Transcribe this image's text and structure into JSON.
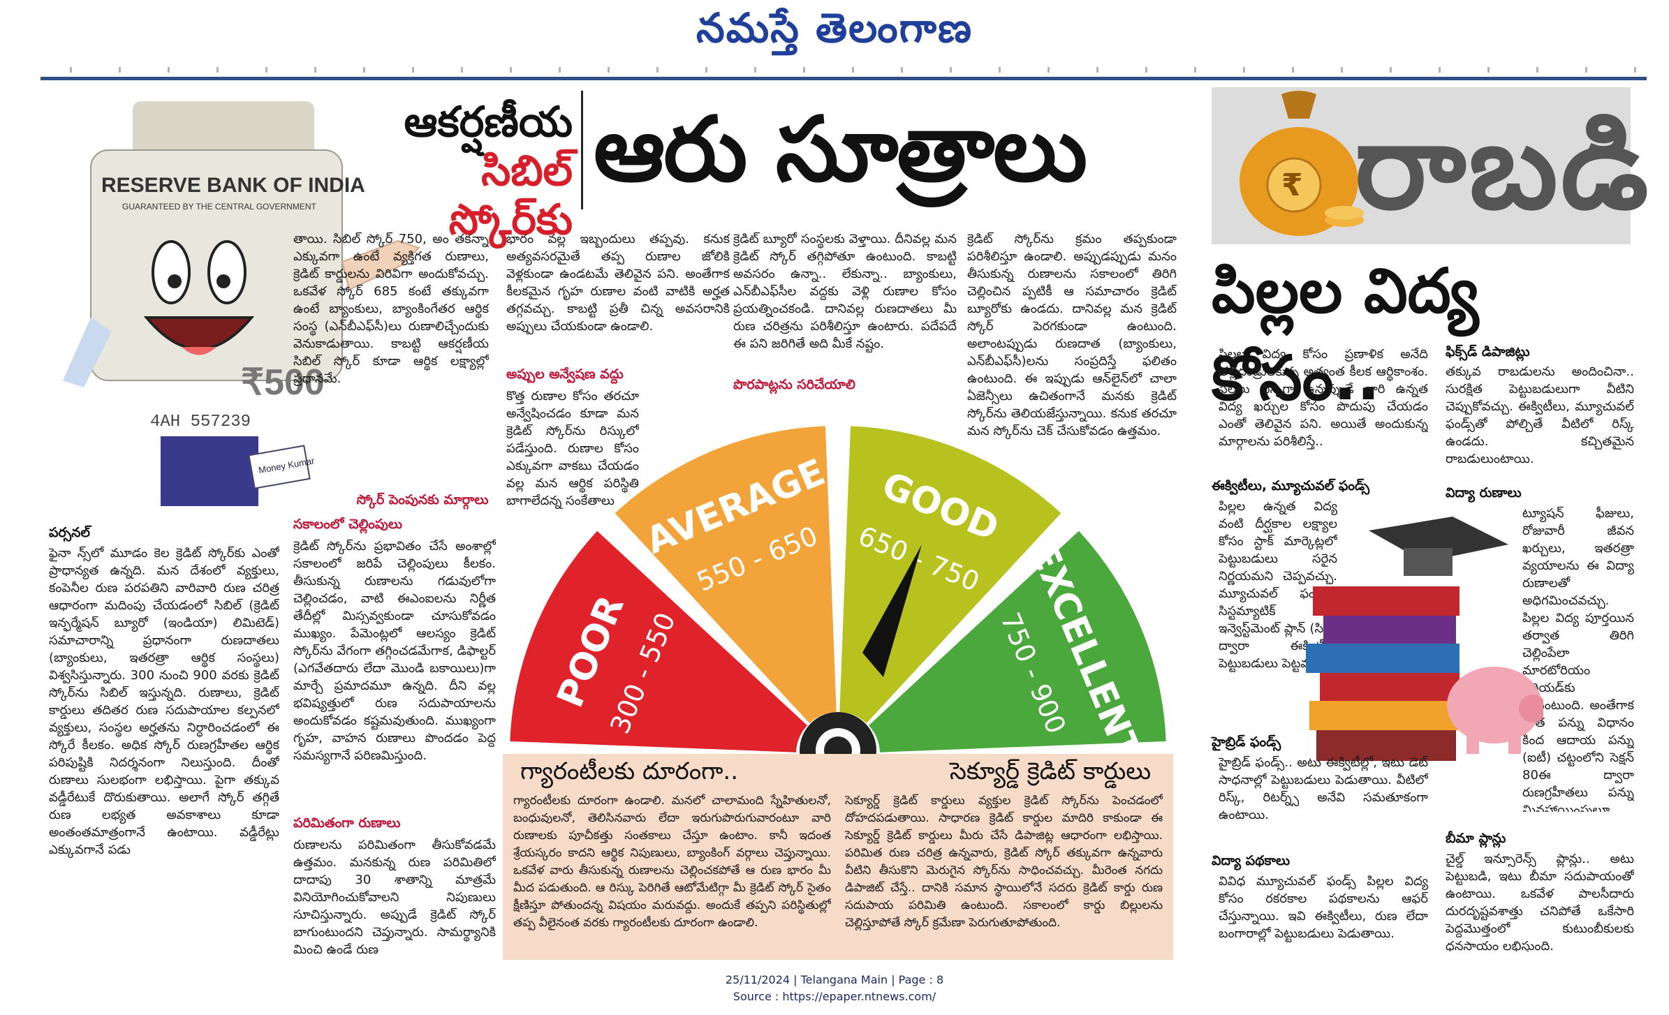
{
  "masthead": {
    "title": "నమస్తే తెలంగాణ"
  },
  "left_story": {
    "headline_line1": "ఆకర్షణీయ",
    "headline_line2": "సిబిల్ స్కోర్‌కు",
    "headline_main": "ఆరు సూత్రాలు",
    "note_label": "RESERVE BANK OF INDIA",
    "note_sub": "GUARANTEED BY THE CENTRAL GOVERNMENT",
    "note_value": "₹500",
    "note_serial": "4AH 557239",
    "badge": "Money Kumar",
    "intro_col1": "తాయి. సిబిల్ స్కోర్ 750, అం తకన్నా ఎక్కువగా ఉంటే వ్యక్తిగత రుణాలు, క్రెడిట్ కార్డులను విరివిగా అందుకోవచ్చు. ఒకవేళ స్కోర్ 685 కంటే తక్కువగా ఉంటే బ్యాంకులు, బ్యాంకింగేతర ఆర్థిక సంస్థ (ఎన్‌బీఎఫ్‌సీ)లు రుణాలిచ్చేందుకు వెనుకాడుతాయి. కాబట్టి ఆకర్షణీయ సిబిల్ స్కోర్ కూడా ఆర్థిక లక్ష్యాల్లో ప్రధానమే.",
    "sub_score": "స్కోర్ పెంపునకు మార్గాలు",
    "sub_timely": "సకాలంలో చెల్లింపులు",
    "timely_text": "క్రెడిట్ స్కోర్‌ను ప్రభావితం చేసే అంశాల్లో సకాలంలో జరిపే చెల్లింపులు కీలకం. తీసుకున్న రుణాలను గడువులోగా చెల్లించడం, వాటి ఈఎంఐలను నిర్ణీత తేదీల్లో మిస్సవ్వకుండా చూసుకోవడం ముఖ్యం. పేమెంట్లలో ఆలస్యం క్రెడిట్ స్కోర్‌ను వేగంగా తగ్గించడమేగాక, డిఫాల్టర్ (ఎగవేతదారు లేదా మొండి బకాయిలు)గా మార్చే ప్రమాదమూ ఉన్నది. దీని వల్ల భవిష్యత్తులో రుణ సదుపాయాలను అందుకోవడం కష్టమవుతుంది. ముఖ్యంగా గృహ, వాహన రుణాలు పొందడం పెద్ద సమస్యగానే పరిణమిస్తుంది.",
    "personal_head": "పర్సనల్",
    "personal_text": "ఫైనా న్స్‌లో మూడం కెల క్రెడిట్ స్కోర్‌కు ఎంతో ప్రాధాన్యత ఉన్నది. మన దేశంలో వ్యక్తులు, కంపెనీల రుణ పరపతిని వారివారి రుణ చరిత్ర ఆధారంగా మదింపు చేయడంలో సిబిల్ (క్రెడిట్ ఇన్ఫర్మేషన్ బ్యూరో (ఇండియా) లిమిటెడ్) సమాచారాన్ని ప్రధానంగా రుణదాతలు (బ్యాంకులు, ఇతరత్రా ఆర్థిక సంస్థలు) విశ్వసిస్తున్నారు. 300 నుంచి 900 వరకు క్రెడిట్ స్కోర్‌ను సిబిల్ ఇస్తున్నది. రుణాలు, క్రెడిట్ కార్డులు తదితర రుణ సదుపాయాల కల్పనలో వ్యక్తులు, సంస్థల అర్హతను నిర్ధారించడంలో ఈ స్కోరే కీలకం. అధిక స్కోర్ రుణగ్రహీతల ఆర్థిక పరిపుష్టికి నిదర్శనంగా నిలుస్తుంది. దీంతో రుణాలు సులభంగా లభిస్తాయి. పైగా తక్కువ వడ్డీరేటుకే దొరుకుతాయి. అలాగే స్కోర్ తగ్గితే రుణ లభ్యత అవకాశాలు కూడా అంతంతమాత్రంగానే ఉంటాయి. వడ్డీరేట్లు ఎక్కువగానే పడు",
    "sub_limit": "పరిమితంగా రుణాలు",
    "limit_text": "రుణాలను పరిమితంగా తీసుకోవడమే ఉత్తమం. మనకున్న రుణ పరిమితిలో దాదాపు 30 శాతాన్ని మాత్రమే వినియోగించుకోవాలని నిపుణులు సూచిస్తున్నారు. అప్పుడే క్రెడిట్ స్కోర్ బాగుంటుందని చెప్తున్నారు. సామర్థ్యానికి మించి ఉండే రుణ",
    "col3_top": "భారం వల్ల ఇబ్బందులు తప్పవు. కనుక అత్యవసరమైతే తప్ప రుణాల జోలికి వెళ్లకుండా ఉండటమే తెలివైన పని. అంతేగాక కీలకమైన గృహ రుణాల వంటి వాటికి అర్హత తగ్గవచ్చు. కాబట్టి ప్రతీ చిన్న అవసరానికి అప్పులు చేయకుండా ఉండాలి.",
    "sub_search": "అప్పుల అన్వేషణ వద్దు",
    "search_text": "కొత్త రుణాల కోసం తరచూ అన్వేషించడం కూడా మన క్రెడిట్ స్కోర్‌ను రిస్కులో పడేస్తుంది. రుణాల కోసం ఎక్కువగా వాకబు చేయడం వల్ల మన ఆర్థిక పరిస్థితి బాగాలేదన్న సంకేతాలు",
    "col4_top": "క్రెడిట్ బ్యూరో సంస్థలకు వెళ్తాయి. దీనివల్ల మన క్రెడిట్ స్కోర్ తగ్గిపోతూ ఉంటుంది. కాబట్టి అవసరం ఉన్నా.. లేకున్నా.. బ్యాంకులు, ఎన్‌బీఎఫ్‌సీల వద్దకు వెళ్లి రుణాల కోసం ప్రయత్నించకండి. దానివల్ల రుణదాతలు మీ రుణ చరిత్రను పరిశీలిస్తూ ఉంటారు. పదేపదే ఈ పని జరిగితే అది మీకే నష్టం.",
    "sub_errors": "పొరపాట్లను సరిచేయాలి",
    "col5_top": "క్రెడిట్ స్కోర్‌ను క్రమం తప్పకుండా పరిశీలిస్తూ ఉండాలి. అప్పుడప్పుడు మనం తీసుకున్న రుణాలను సకాలంలో తిరిగి చెల్లించిన ప్పటికీ ఆ సమాచారం క్రెడిట్ బ్యూరోకు ఉండదు. దానివల్ల మన క్రెడిట్ స్కోర్ పెరగకుండా ఉంటుంది. అలాంటప్పుడు రుణదాత (బ్యాంకులు, ఎన్‌బీఎఫ్‌సీ)లను సంప్రదిస్తే ఫలితం ఉంటుంది. ఈ ఇప్పుడు ఆన్‌లైన్‌లో చాలా ఏజెన్సీలు ఉచితంగానే మనకు క్రెడిట్ స్కోర్‌ను తెలియజేస్తున్నాయి. కనుక తరచూ మన స్కోర్‌ను చెక్ చేసుకోవడం ఉత్తమం."
  },
  "gauge": {
    "segments": [
      {
        "label": "POOR",
        "range": "300 - 550",
        "color": "#e0232a"
      },
      {
        "label": "AVERAGE",
        "range": "550 - 650",
        "color": "#f2a33a"
      },
      {
        "label": "GOOD",
        "range": "650 - 750",
        "color": "#b7c21f"
      },
      {
        "label": "EXCELLENT",
        "range": "750 - 900",
        "color": "#4aa83c"
      }
    ],
    "strip_left": "గ్యారంటీలకు దూరంగా..",
    "strip_right": "సెక్యూర్డ్ క్రెడిట్ కార్డులు",
    "bottom_left_text": "గ్యారంటీలకు దూరంగా ఉండాలి. మనలో చాలామంది స్నేహితులనో, బంధువులనో, తెలిసినవారు లేదా ఇరుగుపొరుగువారంటూ వారి రుణాలకు పూచీకత్తు సంతకాలు చేస్తూ ఉంటాం. కానీ ఇదంత శ్రేయస్కరం కాదని ఆర్థిక నిపుణులు, బ్యాంకింగ్ వర్గాలు చెప్తున్నాయి. ఒకవేళ వారు తీసుకున్న రుణాలను చెల్లించకపోతే ఆ రుణ భారం మీ మీద పడుతుంది. ఆ రిస్కు పెరిగితే ఆటోమేటిగ్గా మీ క్రెడిట్ స్కోర్ సైతం క్షీణిస్తూ పోతుందన్న విషయం మరువద్దు. అందుకే తప్పని పరిస్థితుల్లో తప్ప వీలైనంత వరకు గ్యారంటీలకు దూరంగా ఉండాలి.",
    "bottom_right_text": "సెక్యూర్డ్ క్రెడిట్ కార్డులు వ్యక్తుల క్రెడిట్ స్కోర్‌ను పెంచడంలో దోహదపడుతాయి. సాధారణ క్రెడిట్ కార్డుల మాదిరి కాకుండా ఈ సెక్యూర్డ్ క్రెడిట్ కార్డులు మీరు చేసే డిపాజిట్ల ఆధారంగా లభిస్తాయి. పరిమిత రుణ చరిత్ర ఉన్నవారు, క్రెడిట్ స్కోర్ తక్కువగా ఉన్నవారు వీటిని తీసుకొని మెరుగైన స్కోర్‌ను సాధించవచ్చు. మీరెంత నగదు డిపాజిట్ చేస్తే.. దానికి సమాన స్థాయిలోనే సదరు క్రెడిట్ కార్డు రుణ సదుపాయ పరిమితి ఉంటుంది. సకాలంలో కార్డు బిల్లులను చెల్లిస్తూపోతే స్కోర్ క్రమేణా పెరుగుతూపోతుంది."
  },
  "right_story": {
    "section_word": "రాబడి",
    "headline": "పిల్లల విద్య కోసం..",
    "intro": "పిల్లల విద్య కోసం ప్రణాళిక అనేది తల్లిదండ్రులకున్న అత్యంత కీలక ఆర్థికాంశం. పిల్లలు చిన్నగా ఉన్నప్పుడే వారి ఉన్నత విద్య ఖర్చుల కోసం పొదుపు చేయడం ఎంతో తెలివైన పని. అయితే అందుకున్న మార్గాలను పరిశీలిస్తే..",
    "sub_fd": "ఫిక్స్‌డ్ డిపాజిట్లు",
    "fd_text": "తక్కువ రాబడులను అందించినా.. సురక్షిత పెట్టుబడులుగా వీటిని చెప్పుకోవచ్చు. ఈక్విటీలు, మ్యూచువల్ ఫండ్స్‌తో పోల్చితే వీటిలో రిస్క్ ఉండదు. కచ్చితమైన రాబడులుంటాయి.",
    "sub_equity": "ఈక్విటీలు, మ్యూచువల్ ఫండ్స్",
    "equity_text": "పిల్లల ఉన్నత విద్య వంటి దీర్ఘకాల లక్ష్యాల కోసం స్టాక్ మార్కెట్లలో పెట్టుబడులు సరైన నిర్ణయమని చెప్పవచ్చు. మ్యూచువల్ ఫండ్లలో సిస్టమ్యాటిక్ ఇన్వెస్ట్‌మెంట్ ప్లాన్ (సిప్) ద్వారా ఈక్విటీల్లో పెట్టుబడులు పెట్టవచ్చు.",
    "sub_loans": "విద్యా రుణాలు",
    "loans_text": "ట్యూషన్ ఫీజులు, రోజువారీ జీవన ఖర్చులు, ఇతరత్రా వ్యయాలను ఈ విద్యా రుణాలతో అధిగమించవచ్చు. పిల్లల విద్య పూర్తయిన తర్వాత తిరిగి చెల్లింపేలా మారటోరియం పీరియడ్‌కు వీలుంటుంది. అంతేగాక పాత పన్ను విధానం కింద ఆదాయ పన్ను (ఐటీ) చట్టంలోని సెక్షన్ 80ఈ ద్వారా రుణగ్రహీతలు పన్ను మినహాయింపులూ అందుకోవచ్చు.",
    "sub_hybrid": "హైబ్రిడ్ ఫండ్స్",
    "hybrid_text": "హైబ్రిడ్ ఫండ్స్.. అటు ఈక్విటీల్లో, ఇటు డెట్ సాధనాల్లో పెట్టుబడులు పెడుతాయి. వీటిలో రిస్క్, రిటర్న్స్ అనేవి సమతూకంగా ఉంటాయి.",
    "sub_insurance": "బీమా ప్లాన్లు",
    "insurance_text": "చైల్డ్ ఇన్సూరెన్స్ ప్లాన్లు.. అటు పెట్టుబడి, ఇటు బీమా సదుపాయంతో ఉంటాయి. ఒకవేళ పాలసీదారు దురదృష్టవశాత్తు చనిపోతే ఒకేసారి పెద్దమొత్తంలో కుటుంబీకులకు ధనసాయం లభిస్తుంది.",
    "sub_schemes": "విద్యా పథకాలు",
    "schemes_text": "వివిధ మ్యూచువల్ ఫండ్స్ పిల్లల విద్య కోసం రకరకాల పథకాలను ఆఫర్ చేస్తున్నాయి. ఇవి ఈక్విటీలు, రుణ లేదా బంగారాల్లో పెట్టుబడులు పెడుతాయి."
  },
  "footer": {
    "line1": "25/11/2024 | Telangana Main | Page : 8",
    "line2": "Source : https://epaper.ntnews.com/"
  }
}
